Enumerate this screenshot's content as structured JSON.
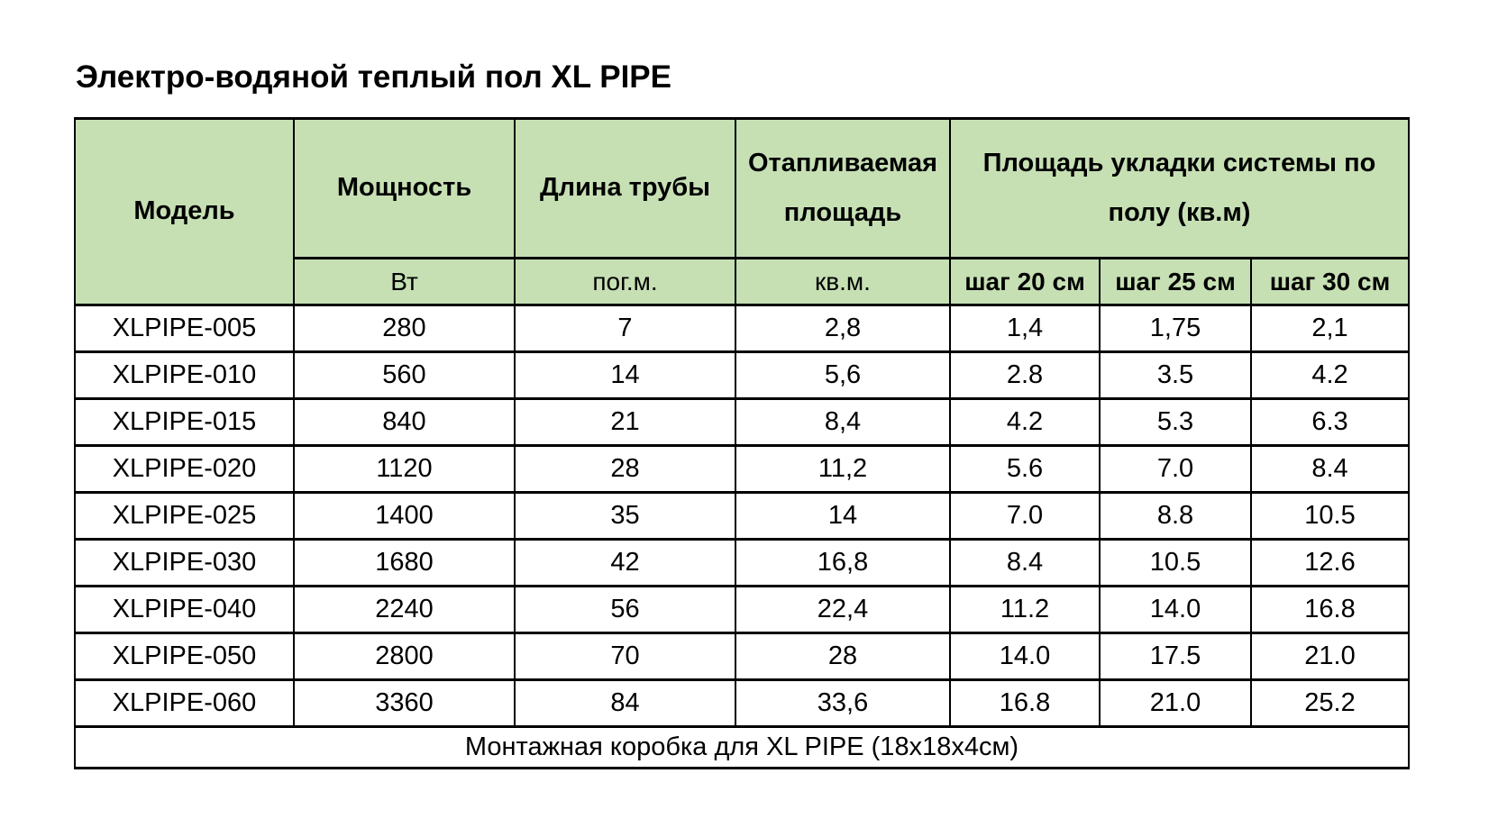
{
  "page": {
    "title": "Электро-водяной теплый пол XL PIPE"
  },
  "colors": {
    "header_bg": "#c6e0b4",
    "border": "#000000",
    "row_bg": "#ffffff",
    "text": "#000000"
  },
  "table": {
    "header": {
      "model": "Модель",
      "power": "Мощность",
      "pipe_length": "Длина трубы",
      "heated_area": "Отапливаемая площадь",
      "laying_area": "Площадь укладки системы по полу (кв.м)",
      "units": {
        "power": "Вт",
        "pipe_length": "пог.м.",
        "heated_area": "кв.м."
      },
      "steps": [
        "шаг 20 см",
        "шаг 25 см",
        "шаг 30 см"
      ]
    },
    "rows": [
      {
        "model": "XLPIPE-005",
        "power": "280",
        "length": "7",
        "area": "2,8",
        "step20": "1,4",
        "step25": "1,75",
        "step30": "2,1"
      },
      {
        "model": "XLPIPE-010",
        "power": "560",
        "length": "14",
        "area": "5,6",
        "step20": "2.8",
        "step25": "3.5",
        "step30": "4.2"
      },
      {
        "model": "XLPIPE-015",
        "power": "840",
        "length": "21",
        "area": "8,4",
        "step20": "4.2",
        "step25": "5.3",
        "step30": "6.3"
      },
      {
        "model": "XLPIPE-020",
        "power": "1120",
        "length": "28",
        "area": "11,2",
        "step20": "5.6",
        "step25": "7.0",
        "step30": "8.4"
      },
      {
        "model": "XLPIPE-025",
        "power": "1400",
        "length": "35",
        "area": "14",
        "step20": "7.0",
        "step25": "8.8",
        "step30": "10.5"
      },
      {
        "model": "XLPIPE-030",
        "power": "1680",
        "length": "42",
        "area": "16,8",
        "step20": "8.4",
        "step25": "10.5",
        "step30": "12.6"
      },
      {
        "model": "XLPIPE-040",
        "power": "2240",
        "length": "56",
        "area": "22,4",
        "step20": "11.2",
        "step25": "14.0",
        "step30": "16.8"
      },
      {
        "model": "XLPIPE-050",
        "power": "2800",
        "length": "70",
        "area": "28",
        "step20": "14.0",
        "step25": "17.5",
        "step30": "21.0"
      },
      {
        "model": "XLPIPE-060",
        "power": "3360",
        "length": "84",
        "area": "33,6",
        "step20": "16.8",
        "step25": "21.0",
        "step30": "25.2"
      }
    ],
    "footer": "Монтажная коробка для XL PIPE (18х18х4см)"
  }
}
